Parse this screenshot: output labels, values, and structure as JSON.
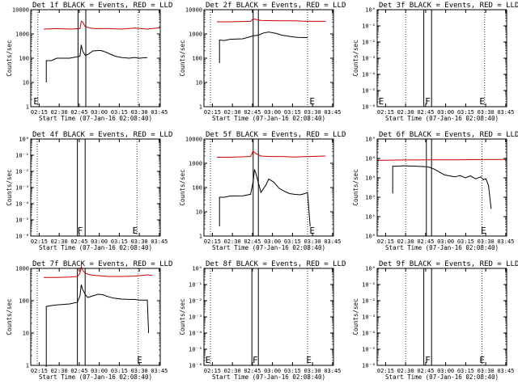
{
  "figure": {
    "xlabel": "Start Time (07-Jan-16 02:08:40)",
    "ylabel": "Counts/sec",
    "x_ticks": [
      "02:15",
      "02:30",
      "02:45",
      "03:00",
      "03:15",
      "03:30",
      "03:45"
    ],
    "colors": {
      "events": "#000000",
      "lld": "#cc0000",
      "axes": "#000000",
      "background": "#ffffff"
    }
  },
  "chart_data": [
    {
      "type": "line",
      "title": "Det 1f BLACK = Events, RED = LLD",
      "xlabel": "Start Time (07-Jan-16 02:08:40)",
      "ylabel": "Counts/sec",
      "log": true,
      "y_ticks": [
        "1",
        "10",
        "100",
        "1000",
        "10000"
      ],
      "y_exp": [
        0,
        1,
        2,
        3,
        4
      ],
      "flags": [
        {
          "text": "E",
          "x": 2.1
        }
      ],
      "series": [
        {
          "name": "Events",
          "color": "#000000",
          "x": [
            12,
            12,
            16,
            20,
            30,
            38,
            39,
            40,
            42,
            44,
            48,
            54,
            58,
            62,
            66,
            70,
            76,
            80,
            84,
            88,
            90
          ],
          "y": [
            1,
            1.9,
            1.9,
            2.0,
            2.0,
            2.08,
            2.55,
            2.3,
            2.12,
            2.15,
            2.3,
            2.32,
            2.25,
            2.15,
            2.07,
            2.03,
            2.0,
            2.03,
            2.0,
            2.02,
            2.02
          ]
        },
        {
          "name": "LLD",
          "color": "#cc0000",
          "x": [
            10,
            20,
            30,
            38,
            39,
            40,
            42,
            46,
            50,
            60,
            70,
            80,
            90,
            100
          ],
          "y": [
            3.2,
            3.22,
            3.2,
            3.22,
            3.52,
            3.5,
            3.3,
            3.24,
            3.22,
            3.22,
            3.2,
            3.24,
            3.2,
            3.26
          ]
        }
      ],
      "vlines_solid": [
        36.5,
        42.5
      ],
      "vlines_dotted": [
        5.5,
        83
      ]
    },
    {
      "type": "line",
      "title": "Det 2f BLACK = Events, RED = LLD",
      "xlabel": "Start Time (07-Jan-16 02:08:40)",
      "ylabel": "Counts/sec",
      "log": true,
      "y_ticks": [
        "1",
        "10",
        "100",
        "1000",
        "10000"
      ],
      "y_exp": [
        0,
        1,
        2,
        3,
        4
      ],
      "flags": [
        {
          "text": "E",
          "x": 81.5
        }
      ],
      "series": [
        {
          "name": "Events",
          "color": "#000000",
          "x": [
            12,
            12,
            16,
            20,
            30,
            38,
            42,
            46,
            50,
            56,
            60,
            66,
            72,
            78,
            80
          ],
          "y": [
            1.8,
            2.75,
            2.73,
            2.78,
            2.8,
            2.92,
            2.95,
            3.04,
            3.08,
            3.02,
            2.95,
            2.9,
            2.86,
            2.85,
            2.85
          ]
        },
        {
          "name": "LLD",
          "color": "#cc0000",
          "x": [
            10,
            20,
            36,
            38,
            40,
            44,
            50,
            60,
            70,
            80,
            94
          ],
          "y": [
            3.5,
            3.5,
            3.52,
            3.62,
            3.6,
            3.56,
            3.55,
            3.54,
            3.54,
            3.52,
            3.52
          ]
        }
      ],
      "vlines_solid": [
        38,
        42
      ],
      "vlines_dotted": [
        5,
        80
      ]
    },
    {
      "type": "line",
      "title": "Det 3f BLACK = Events, RED = LLD",
      "xlabel": "Start Time (07-Jan-16 02:08:40)",
      "ylabel": "Counts/sec",
      "log": true,
      "y_ticks": [
        "10⁻⁶",
        "10⁻⁵",
        "10⁻⁴",
        "10⁻³",
        "10⁻²",
        "10⁻¹",
        "10⁰"
      ],
      "y_exp": [
        -6,
        -5,
        -4,
        -3,
        -2,
        -1,
        0
      ],
      "flags": [
        {
          "text": "E",
          "x": 1
        },
        {
          "text": "F",
          "x": 37
        },
        {
          "text": "E",
          "x": 79
        }
      ],
      "series": [],
      "vlines_solid": [
        36,
        42
      ],
      "vlines_dotted": [
        22,
        83
      ]
    },
    {
      "type": "line",
      "title": "Det 4f BLACK = Events, RED = LLD",
      "xlabel": "Start Time (07-Jan-16 02:08:40)",
      "ylabel": "Counts/sec",
      "log": true,
      "y_ticks": [
        "10⁻⁶",
        "10⁻⁵",
        "10⁻⁴",
        "10⁻³",
        "10⁻²",
        "10⁻¹",
        "10⁰"
      ],
      "y_exp": [
        -6,
        -5,
        -4,
        -3,
        -2,
        -1,
        0
      ],
      "flags": [
        {
          "text": "F",
          "x": 36
        },
        {
          "text": "E",
          "x": 78.5
        }
      ],
      "series": [],
      "vlines_solid": [
        36,
        42
      ],
      "vlines_dotted": [
        5,
        82
      ]
    },
    {
      "type": "line",
      "title": "Det 5f BLACK = Events, RED = LLD",
      "xlabel": "Start Time (07-Jan-16 02:08:40)",
      "ylabel": "Counts/sec",
      "log": true,
      "y_ticks": [
        "1",
        "10",
        "100",
        "1000",
        "10000"
      ],
      "y_exp": [
        0,
        1,
        2,
        3,
        4
      ],
      "flags": [
        {
          "text": "E",
          "x": 81.5
        }
      ],
      "series": [
        {
          "name": "Events",
          "color": "#000000",
          "x": [
            12,
            12,
            16,
            20,
            30,
            36,
            38,
            39,
            40,
            42,
            44,
            48,
            50,
            54,
            58,
            62,
            66,
            70,
            74,
            78,
            80,
            82
          ],
          "y": [
            0.4,
            1.6,
            1.6,
            1.65,
            1.66,
            1.72,
            2.25,
            2.75,
            2.6,
            2.2,
            1.8,
            2.12,
            2.35,
            2.22,
            1.97,
            1.85,
            1.75,
            1.72,
            1.7,
            1.75,
            1.8,
            0.4
          ]
        },
        {
          "name": "LLD",
          "color": "#cc0000",
          "x": [
            10,
            20,
            36,
            38,
            40,
            44,
            50,
            60,
            70,
            80,
            94
          ],
          "y": [
            3.25,
            3.25,
            3.28,
            3.5,
            3.4,
            3.3,
            3.28,
            3.28,
            3.26,
            3.28,
            3.3
          ]
        }
      ],
      "vlines_solid": [
        38,
        42
      ],
      "vlines_dotted": [
        5,
        80
      ]
    },
    {
      "type": "line",
      "title": "Det 6f BLACK = Events, RED = LLD",
      "xlabel": "Start Time (07-Jan-16 02:08:40)",
      "ylabel": "Counts/sec",
      "log": true,
      "y_ticks": [
        "10⁰",
        "10¹",
        "10²",
        "10³",
        "10⁴",
        "10⁵"
      ],
      "y_exp": [
        0,
        1,
        2,
        3,
        4,
        5
      ],
      "flags": [
        {
          "text": "E",
          "x": 80
        }
      ],
      "series": [
        {
          "name": "Events",
          "color": "#000000",
          "x": [
            12,
            12,
            16,
            20,
            30,
            36,
            40,
            44,
            48,
            52,
            56,
            60,
            64,
            68,
            72,
            76,
            80,
            82,
            84,
            86,
            88
          ],
          "y": [
            2.2,
            3.6,
            3.6,
            3.62,
            3.6,
            3.58,
            3.55,
            3.45,
            3.3,
            3.15,
            3.1,
            3.05,
            3.12,
            3.0,
            3.1,
            2.95,
            3.05,
            2.9,
            2.95,
            2.6,
            1.4
          ]
        },
        {
          "name": "LLD",
          "color": "#cc0000",
          "x": [
            0,
            20,
            40,
            60,
            80,
            100
          ],
          "y": [
            3.9,
            3.92,
            3.93,
            3.93,
            3.94,
            3.95
          ]
        }
      ],
      "vlines_solid": [
        38,
        42
      ],
      "vlines_dotted": [
        22,
        81
      ]
    },
    {
      "type": "line",
      "title": "Det 7f BLACK = Events, RED = LLD",
      "xlabel": "Start Time (07-Jan-16 02:08:40)",
      "ylabel": "Counts/sec",
      "log": true,
      "y_ticks": [
        "1",
        "10",
        "100",
        "1000"
      ],
      "y_exp": [
        0,
        1,
        2,
        3
      ],
      "flags": [
        {
          "text": "E",
          "x": 82
        }
      ],
      "series": [
        {
          "name": "Events",
          "color": "#000000",
          "x": [
            12,
            12,
            16,
            20,
            30,
            36,
            38,
            39,
            40,
            42,
            44,
            48,
            52,
            56,
            60,
            64,
            70,
            76,
            80,
            84,
            90,
            91
          ],
          "y": [
            -0.05,
            1.82,
            1.85,
            1.87,
            1.9,
            1.95,
            2.15,
            2.5,
            2.35,
            2.2,
            2.1,
            2.15,
            2.2,
            2.18,
            2.12,
            2.08,
            2.05,
            2.04,
            2.04,
            2.02,
            2.02,
            1.0
          ]
        },
        {
          "name": "LLD",
          "color": "#cc0000",
          "x": [
            10,
            20,
            30,
            36,
            38,
            39,
            40,
            42,
            46,
            50,
            60,
            70,
            80,
            90,
            94
          ],
          "y": [
            2.72,
            2.72,
            2.73,
            2.75,
            2.85,
            3.05,
            2.95,
            2.85,
            2.8,
            2.78,
            2.75,
            2.75,
            2.76,
            2.8,
            2.78
          ]
        }
      ],
      "vlines_solid": [
        36,
        42
      ],
      "vlines_dotted": [
        5,
        83
      ]
    },
    {
      "type": "line",
      "title": "Det 8f BLACK = Events, RED = LLD",
      "xlabel": "Start Time (07-Jan-16 02:08:40)",
      "ylabel": "Counts/sec",
      "log": true,
      "y_ticks": [
        "10⁻⁶",
        "10⁻⁵",
        "10⁻⁴",
        "10⁻³",
        "10⁻²",
        "10⁻¹",
        "10⁰"
      ],
      "y_exp": [
        -6,
        -5,
        -4,
        -3,
        -2,
        -1,
        0
      ],
      "flags": [
        {
          "text": "E",
          "x": 1
        },
        {
          "text": "F",
          "x": 37.5
        },
        {
          "text": "E",
          "x": 79
        }
      ],
      "series": [],
      "vlines_solid": [
        37,
        42
      ],
      "vlines_dotted": [
        5,
        80
      ]
    },
    {
      "type": "line",
      "title": "Det 9f BLACK = Events, RED = LLD",
      "xlabel": "Start Time (07-Jan-16 02:08:40)",
      "ylabel": "Counts/sec",
      "log": true,
      "y_ticks": [
        "10⁻⁶",
        "10⁻⁵",
        "10⁻⁴",
        "10⁻³",
        "10⁻²",
        "10⁻¹",
        "10⁰"
      ],
      "y_exp": [
        -6,
        -5,
        -4,
        -3,
        -2,
        -1,
        0
      ],
      "flags": [
        {
          "text": "F",
          "x": 37
        },
        {
          "text": "E",
          "x": 79
        }
      ],
      "series": [],
      "vlines_solid": [
        36,
        42
      ],
      "vlines_dotted": [
        22,
        81
      ]
    }
  ]
}
